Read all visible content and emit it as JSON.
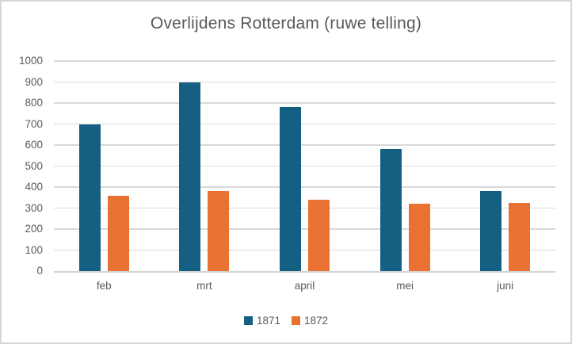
{
  "window": {
    "background": "#FFFFFF",
    "border_color": "#D6D6D6"
  },
  "chart_data": {
    "type": "bar",
    "title": "Overlijdens Rotterdam (ruwe telling)",
    "title_color": "#595959",
    "categories": [
      "feb",
      "mrt",
      "april",
      "mei",
      "juni"
    ],
    "series": [
      {
        "name": "1871",
        "color": "#156082",
        "values": [
          700,
          900,
          780,
          580,
          380
        ]
      },
      {
        "name": "1872",
        "color": "#E97132",
        "values": [
          360,
          380,
          340,
          320,
          325
        ]
      }
    ],
    "xlabel": "",
    "ylabel": "",
    "ylim": [
      0,
      1000
    ],
    "ytick_step": 100,
    "yticks": [
      0,
      100,
      200,
      300,
      400,
      500,
      600,
      700,
      800,
      900,
      1000
    ],
    "grid": true,
    "gridline_color": "#D9D9D9",
    "axis_text_color": "#595959",
    "legend_position": "bottom"
  }
}
